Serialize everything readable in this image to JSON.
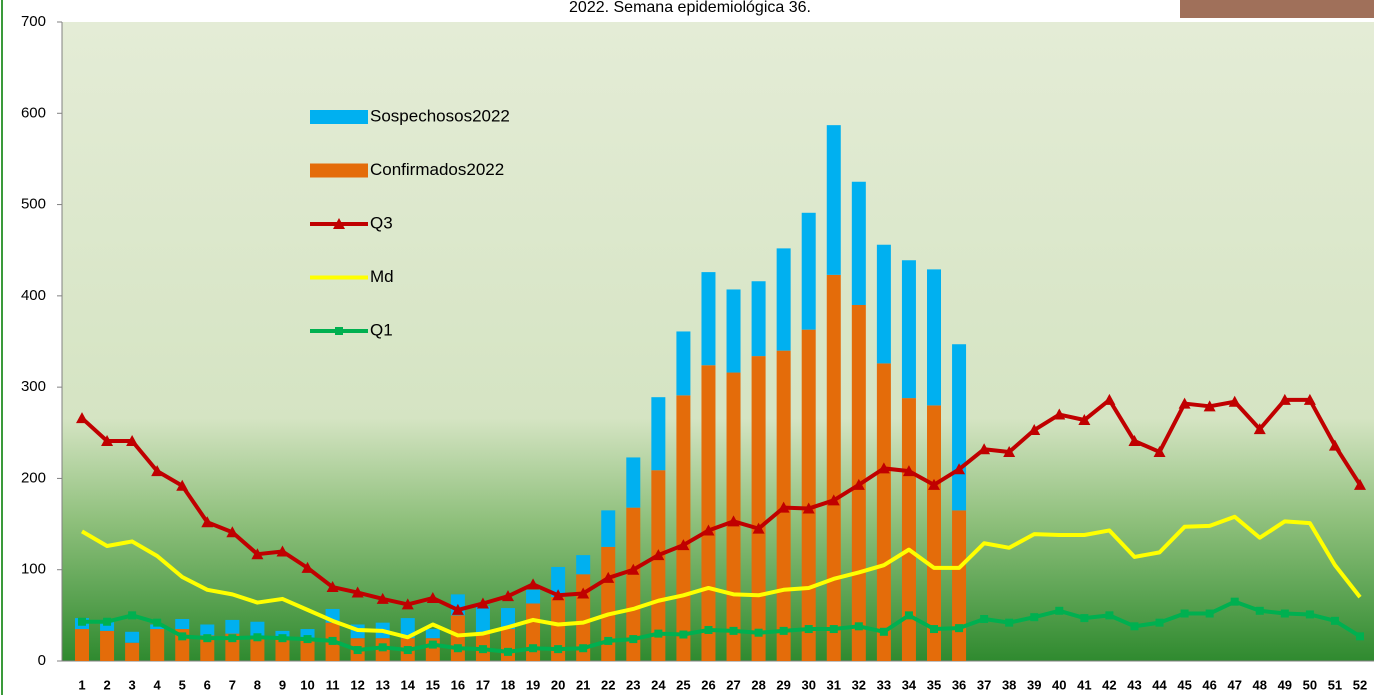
{
  "chart_data": {
    "type": "bar",
    "stacked": true,
    "title": "2022. Semana epidemiológica 36.",
    "categories": [
      "1",
      "2",
      "3",
      "4",
      "5",
      "6",
      "7",
      "8",
      "9",
      "10",
      "11",
      "12",
      "13",
      "14",
      "15",
      "16",
      "17",
      "18",
      "19",
      "20",
      "21",
      "22",
      "23",
      "24",
      "25",
      "26",
      "27",
      "28",
      "29",
      "30",
      "31",
      "32",
      "33",
      "34",
      "35",
      "36",
      "37",
      "38",
      "39",
      "40",
      "41",
      "42",
      "43",
      "44",
      "45",
      "46",
      "47",
      "48",
      "49",
      "50",
      "51",
      "52"
    ],
    "ylim": [
      0,
      700
    ],
    "yticks": [
      0,
      100,
      200,
      300,
      400,
      500,
      600,
      700
    ],
    "series": [
      {
        "name": "Sospechosos2022",
        "type": "bar",
        "color": "#00b0f0",
        "values": [
          12,
          12,
          12,
          5,
          11,
          12,
          15,
          16,
          8,
          13,
          15,
          15,
          17,
          22,
          10,
          23,
          30,
          23,
          15,
          33,
          21,
          40,
          55,
          80,
          70,
          102,
          91,
          82,
          112,
          128,
          164,
          135,
          130,
          151,
          149,
          182,
          null,
          null,
          null,
          null,
          null,
          null,
          null,
          null,
          null,
          null,
          null,
          null,
          null,
          null,
          null,
          null
        ]
      },
      {
        "name": "Confirmados2022",
        "type": "bar",
        "color": "#e46c0a",
        "values": [
          35,
          33,
          20,
          35,
          35,
          28,
          30,
          27,
          25,
          22,
          42,
          25,
          25,
          25,
          25,
          50,
          30,
          35,
          63,
          70,
          95,
          125,
          168,
          209,
          291,
          324,
          316,
          334,
          340,
          363,
          423,
          390,
          326,
          288,
          280,
          165,
          null,
          null,
          null,
          null,
          null,
          null,
          null,
          null,
          null,
          null,
          null,
          null,
          null,
          null,
          null,
          null
        ]
      },
      {
        "name": "Q3",
        "type": "line",
        "marker": "triangle",
        "color": "#c00000",
        "values": [
          266,
          241,
          241,
          208,
          192,
          152,
          141,
          117,
          120,
          102,
          81,
          75,
          68,
          62,
          69,
          56,
          63,
          71,
          84,
          72,
          74,
          91,
          100,
          116,
          127,
          143,
          153,
          145,
          168,
          167,
          176,
          193,
          211,
          208,
          193,
          210,
          232,
          229,
          253,
          270,
          264,
          286,
          241,
          229,
          282,
          279,
          284,
          254,
          286,
          286,
          236,
          193
        ]
      },
      {
        "name": "Md",
        "type": "line",
        "marker": "none",
        "color": "#ffff00",
        "values": [
          142,
          126,
          131,
          115,
          92,
          78,
          73,
          64,
          68,
          56,
          44,
          34,
          33,
          26,
          40,
          28,
          30,
          37,
          45,
          40,
          42,
          51,
          57,
          66,
          72,
          80,
          73,
          72,
          78,
          80,
          90,
          97,
          105,
          122,
          102,
          102,
          129,
          124,
          139,
          138,
          138,
          143,
          114,
          119,
          147,
          148,
          158,
          135,
          153,
          151,
          105,
          70
        ]
      },
      {
        "name": "Q1",
        "type": "line",
        "marker": "square",
        "color": "#00b050",
        "values": [
          43,
          43,
          50,
          42,
          27,
          25,
          25,
          26,
          25,
          24,
          22,
          12,
          15,
          12,
          18,
          14,
          13,
          10,
          14,
          13,
          14,
          22,
          24,
          30,
          29,
          34,
          33,
          31,
          33,
          35,
          35,
          38,
          32,
          50,
          35,
          36,
          46,
          42,
          48,
          55,
          47,
          50,
          38,
          42,
          52,
          52,
          65,
          55,
          52,
          51,
          44,
          27
        ]
      }
    ]
  }
}
